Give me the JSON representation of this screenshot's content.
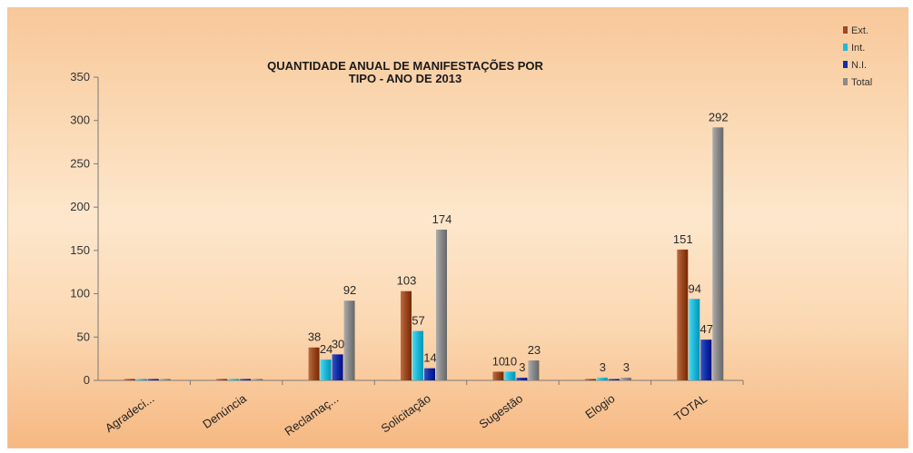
{
  "chart_data": {
    "type": "bar",
    "title_lines": [
      "QUANTIDADE ANUAL DE MANIFESTAÇÕES POR",
      "TIPO - ANO DE 2013"
    ],
    "categories": [
      "Agradeci...",
      "Denúncia",
      "Reclamaç...",
      "Solicitação",
      "Sugestão",
      "Elogio",
      "TOTAL"
    ],
    "series": [
      {
        "name": "Ext.",
        "color": "#9b4a22",
        "values": [
          0,
          0,
          38,
          103,
          10,
          0,
          151
        ],
        "labels": [
          "",
          "",
          "38",
          "103",
          "10",
          "",
          "151"
        ]
      },
      {
        "name": "Int.",
        "color": "#22b8d8",
        "values": [
          0,
          0,
          24,
          57,
          10,
          3,
          94
        ],
        "labels": [
          "",
          "",
          "24",
          "57",
          "10",
          "3",
          "94"
        ]
      },
      {
        "name": "N.I.",
        "color": "#1230a8",
        "values": [
          0,
          0,
          30,
          14,
          3,
          0,
          47
        ],
        "labels": [
          "",
          "",
          "30",
          "14",
          "3",
          "",
          "47"
        ]
      },
      {
        "name": "Total",
        "color": "#8a8a8a",
        "values": [
          0,
          0,
          92,
          174,
          23,
          3,
          292
        ],
        "labels": [
          "",
          "",
          "92",
          "174",
          "23",
          "3",
          "292"
        ]
      }
    ],
    "ylim": [
      0,
      350
    ],
    "yticks": [
      0,
      50,
      100,
      150,
      200,
      250,
      300,
      350
    ],
    "grid": false,
    "legend_position": "top-right"
  }
}
